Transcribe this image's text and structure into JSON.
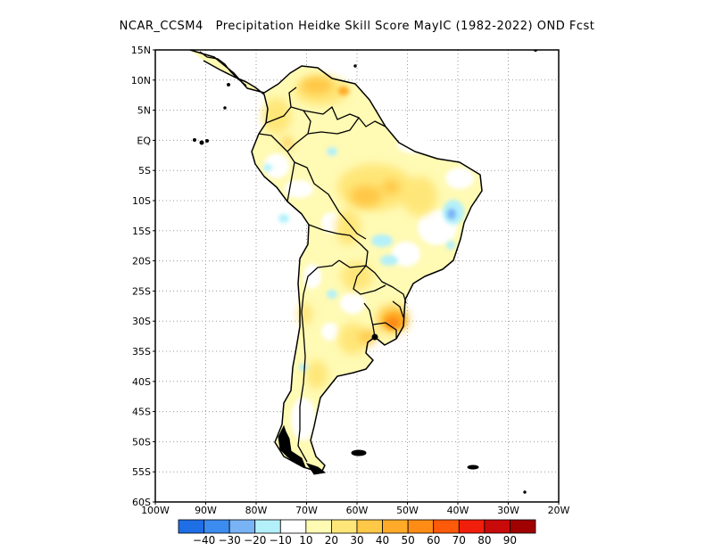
{
  "title": "NCAR_CCSM4   Precipitation Heidke Skill Score MayIC (1982-2022) OND Fcst",
  "lat_labels": [
    "15N",
    "10N",
    "5N",
    "EQ",
    "5S",
    "10S",
    "15S",
    "20S",
    "25S",
    "30S",
    "35S",
    "40S",
    "45S",
    "50S",
    "55S",
    "60S"
  ],
  "lon_labels": [
    "100W",
    "90W",
    "80W",
    "70W",
    "60W",
    "50W",
    "40W",
    "30W",
    "20W"
  ],
  "colorbar": {
    "colors": [
      "#1e6ee6",
      "#3c8cf0",
      "#78b4f5",
      "#b4f0fa",
      "#ffffff",
      "#fffab4",
      "#ffe678",
      "#ffc846",
      "#ffaa28",
      "#ff8c14",
      "#ff5a0a",
      "#f01e0a",
      "#c80a0a",
      "#a00000"
    ],
    "labels": [
      "-40",
      "-30",
      "-20",
      "-10",
      "10",
      "20",
      "30",
      "40",
      "50",
      "60",
      "70",
      "80",
      "90"
    ]
  }
}
